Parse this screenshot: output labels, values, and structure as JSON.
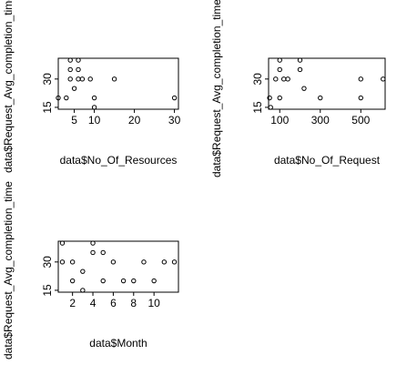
{
  "chart_data": [
    {
      "type": "scatter",
      "xlabel": "data$No_Of_Resources",
      "ylabel": "data$Request_Avg_completion_time",
      "xlim": [
        1,
        31
      ],
      "ylim": [
        14,
        41
      ],
      "xticks": [
        5,
        10,
        20,
        30
      ],
      "yticks": [
        15,
        30
      ],
      "points": [
        {
          "x": 1,
          "y": 20
        },
        {
          "x": 3,
          "y": 20
        },
        {
          "x": 4,
          "y": 40
        },
        {
          "x": 6,
          "y": 40
        },
        {
          "x": 4,
          "y": 35
        },
        {
          "x": 6,
          "y": 35
        },
        {
          "x": 4,
          "y": 30
        },
        {
          "x": 6,
          "y": 30
        },
        {
          "x": 7,
          "y": 30
        },
        {
          "x": 9,
          "y": 30
        },
        {
          "x": 5,
          "y": 25
        },
        {
          "x": 10,
          "y": 20
        },
        {
          "x": 10,
          "y": 15
        },
        {
          "x": 15,
          "y": 30
        },
        {
          "x": 30,
          "y": 20
        }
      ]
    },
    {
      "type": "scatter",
      "xlabel": "data$No_Of_Request",
      "ylabel": "data$Request_Avg_completion_time",
      "xlim": [
        45,
        620
      ],
      "ylim": [
        14,
        41
      ],
      "xticks": [
        100,
        300,
        500
      ],
      "yticks": [
        15,
        30
      ],
      "points": [
        {
          "x": 50,
          "y": 20
        },
        {
          "x": 55,
          "y": 15
        },
        {
          "x": 80,
          "y": 30
        },
        {
          "x": 100,
          "y": 40
        },
        {
          "x": 100,
          "y": 35
        },
        {
          "x": 100,
          "y": 20
        },
        {
          "x": 120,
          "y": 30
        },
        {
          "x": 140,
          "y": 30
        },
        {
          "x": 200,
          "y": 40
        },
        {
          "x": 200,
          "y": 35
        },
        {
          "x": 220,
          "y": 25
        },
        {
          "x": 300,
          "y": 20
        },
        {
          "x": 500,
          "y": 30
        },
        {
          "x": 500,
          "y": 20
        },
        {
          "x": 610,
          "y": 30
        }
      ]
    },
    {
      "type": "scatter",
      "xlabel": "data$Month",
      "ylabel": "data$Request_Avg_completion_time",
      "xlim": [
        0.6,
        12.4
      ],
      "ylim": [
        14,
        41
      ],
      "xticks": [
        2,
        4,
        6,
        8,
        10
      ],
      "yticks": [
        15,
        30
      ],
      "points": [
        {
          "x": 1,
          "y": 40
        },
        {
          "x": 1,
          "y": 30
        },
        {
          "x": 2,
          "y": 30
        },
        {
          "x": 2,
          "y": 20
        },
        {
          "x": 3,
          "y": 25
        },
        {
          "x": 3,
          "y": 15
        },
        {
          "x": 4,
          "y": 40
        },
        {
          "x": 4,
          "y": 35
        },
        {
          "x": 5,
          "y": 35
        },
        {
          "x": 5,
          "y": 20
        },
        {
          "x": 6,
          "y": 30
        },
        {
          "x": 7,
          "y": 20
        },
        {
          "x": 8,
          "y": 20
        },
        {
          "x": 9,
          "y": 30
        },
        {
          "x": 10,
          "y": 20
        },
        {
          "x": 11,
          "y": 30
        },
        {
          "x": 12,
          "y": 30
        }
      ]
    }
  ]
}
